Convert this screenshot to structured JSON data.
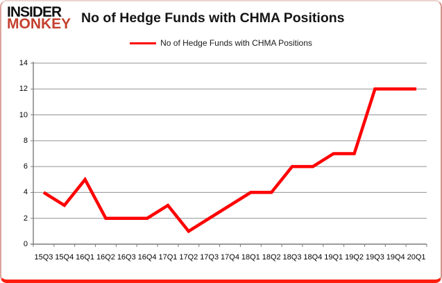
{
  "logo": {
    "line1": "INSIDER",
    "line2": "MONKEY",
    "accent_color": "#c4402e",
    "text_color": "#101010"
  },
  "header": {
    "title": "No of Hedge Funds with CHMA Positions"
  },
  "legend": {
    "label": "No of Hedge Funds with CHMA Positions",
    "line_color": "#ff0000"
  },
  "chart_data": {
    "type": "line",
    "title": "No of Hedge Funds with CHMA Positions",
    "categories": [
      "15Q3",
      "15Q4",
      "16Q1",
      "16Q2",
      "16Q3",
      "16Q4",
      "17Q1",
      "17Q2",
      "17Q3",
      "17Q4",
      "18Q1",
      "18Q2",
      "18Q3",
      "18Q4",
      "19Q1",
      "19Q2",
      "19Q3",
      "19Q4",
      "20Q1"
    ],
    "values": [
      4,
      3,
      5,
      2,
      2,
      2,
      3,
      1,
      2,
      3,
      4,
      4,
      6,
      6,
      7,
      7,
      12,
      12,
      12
    ],
    "series_name": "No of Hedge Funds with CHMA Positions",
    "xlabel": "",
    "ylabel": "",
    "ylim": [
      0,
      14
    ],
    "yticks": [
      0,
      2,
      4,
      6,
      8,
      10,
      12,
      14
    ],
    "grid": "horizontal",
    "legend_position": "top-center",
    "colors": {
      "line": "#ff0000",
      "grid": "#919191",
      "axis": "#7a7a7a",
      "tick_text": "#000000"
    }
  }
}
